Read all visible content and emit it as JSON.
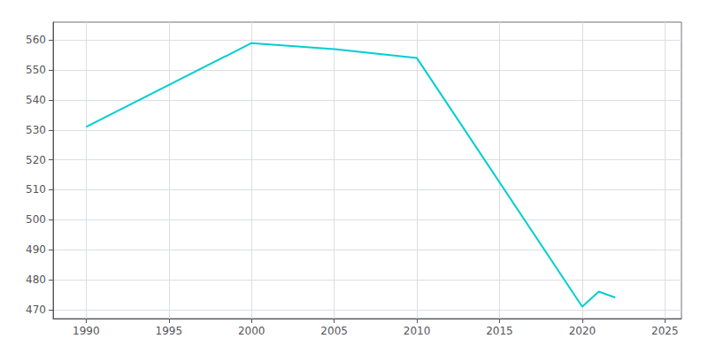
{
  "chart_data": {
    "type": "line",
    "x": [
      1990,
      2000,
      2005,
      2010,
      2020,
      2021,
      2022
    ],
    "values": [
      531,
      559,
      557,
      554,
      471,
      476,
      474
    ],
    "color": "#00CED1",
    "xlim": [
      1988,
      2026
    ],
    "ylim": [
      467,
      566
    ],
    "xticks": [
      1990,
      1995,
      2000,
      2005,
      2010,
      2015,
      2020,
      2025
    ],
    "yticks": [
      470,
      480,
      490,
      500,
      510,
      520,
      530,
      540,
      550,
      560
    ],
    "grid": true
  }
}
